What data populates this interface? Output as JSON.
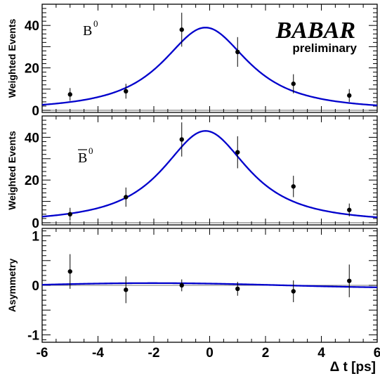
{
  "chart_data": [
    {
      "type": "scatter",
      "panel": "top",
      "label": "B",
      "label_superscript": "0",
      "logo": "BABAR",
      "logo_subtitle": "preliminary",
      "ylabel": "Weighted Events",
      "xlim": [
        -6,
        6
      ],
      "ylim": [
        -1,
        50
      ],
      "yticks": [
        0,
        20,
        40
      ],
      "points": [
        {
          "x": -5,
          "y": 7.5,
          "err": 3.0
        },
        {
          "x": -3,
          "y": 9.0,
          "err": 3.5
        },
        {
          "x": -1,
          "y": 38.0,
          "err": 8.0
        },
        {
          "x": 1,
          "y": 27.5,
          "err": 7.0
        },
        {
          "x": 3,
          "y": 12.5,
          "err": 4.5
        },
        {
          "x": 5,
          "y": 7.0,
          "err": 3.0
        }
      ],
      "fit": {
        "color": "#0000cc",
        "peak_x": -0.15,
        "peak_y": 39.0,
        "width": 2.0
      }
    },
    {
      "type": "scatter",
      "panel": "middle",
      "label": "B",
      "label_bar": true,
      "label_superscript": "0",
      "ylabel": "Weighted Events",
      "xlim": [
        -6,
        6
      ],
      "ylim": [
        -1,
        50
      ],
      "yticks": [
        0,
        20,
        40
      ],
      "points": [
        {
          "x": -5,
          "y": 4.0,
          "err": 3.0
        },
        {
          "x": -3,
          "y": 12.0,
          "err": 4.5
        },
        {
          "x": -1,
          "y": 39.0,
          "err": 8.0
        },
        {
          "x": 1,
          "y": 33.0,
          "err": 7.5
        },
        {
          "x": 3,
          "y": 17.0,
          "err": 5.0
        },
        {
          "x": 5,
          "y": 6.0,
          "err": 3.0
        }
      ],
      "fit": {
        "color": "#0000cc",
        "peak_x": -0.15,
        "peak_y": 43.0,
        "width": 2.0
      }
    },
    {
      "type": "scatter",
      "panel": "bottom",
      "ylabel": "Asymmetry",
      "xlabel": "Δ t [ps]",
      "xlim": [
        -6,
        6
      ],
      "ylim": [
        -1.15,
        1.15
      ],
      "yticks": [
        -1,
        0,
        1
      ],
      "xticks": [
        -6,
        -4,
        -2,
        0,
        2,
        4,
        6
      ],
      "points": [
        {
          "x": -5,
          "y": 0.28,
          "err": 0.35
        },
        {
          "x": -3,
          "y": -0.09,
          "err": 0.27
        },
        {
          "x": -1,
          "y": 0.0,
          "err": 0.12
        },
        {
          "x": 1,
          "y": -0.07,
          "err": 0.14
        },
        {
          "x": 3,
          "y": -0.12,
          "err": 0.22
        },
        {
          "x": 5,
          "y": 0.09,
          "err": 0.33
        }
      ],
      "fit": {
        "color": "#0000cc",
        "model": "0.045*sin(1.9*x*pi/12 ... )",
        "amplitude": 0.05
      }
    }
  ]
}
